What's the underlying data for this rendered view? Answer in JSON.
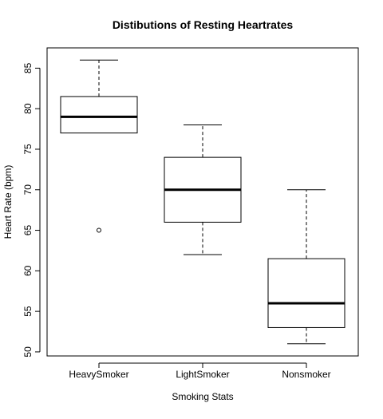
{
  "chart_data": {
    "type": "box",
    "title": "Distibutions of Resting Heartrates",
    "xlabel": "Smoking Stats",
    "ylabel": "Heart Rate (bpm)",
    "categories": [
      "HeavySmoker",
      "LightSmoker",
      "Nonsmoker"
    ],
    "ylim": [
      49.5,
      87.5
    ],
    "yticks": [
      50,
      55,
      60,
      65,
      70,
      75,
      80,
      85
    ],
    "grid": false,
    "legend": "none",
    "boxes": [
      {
        "category": "HeavySmoker",
        "whisker_low": 77,
        "q1": 77,
        "median": 79,
        "q3": 81.5,
        "whisker_high": 86,
        "outliers": [
          65
        ]
      },
      {
        "category": "LightSmoker",
        "whisker_low": 62,
        "q1": 66,
        "median": 70,
        "q3": 74,
        "whisker_high": 78,
        "outliers": []
      },
      {
        "category": "Nonsmoker",
        "whisker_low": 51,
        "q1": 53,
        "median": 56,
        "q3": 61.5,
        "whisker_high": 70,
        "outliers": []
      }
    ],
    "colors": {
      "box_fill": "#ffffff",
      "stroke": "#000000"
    }
  }
}
